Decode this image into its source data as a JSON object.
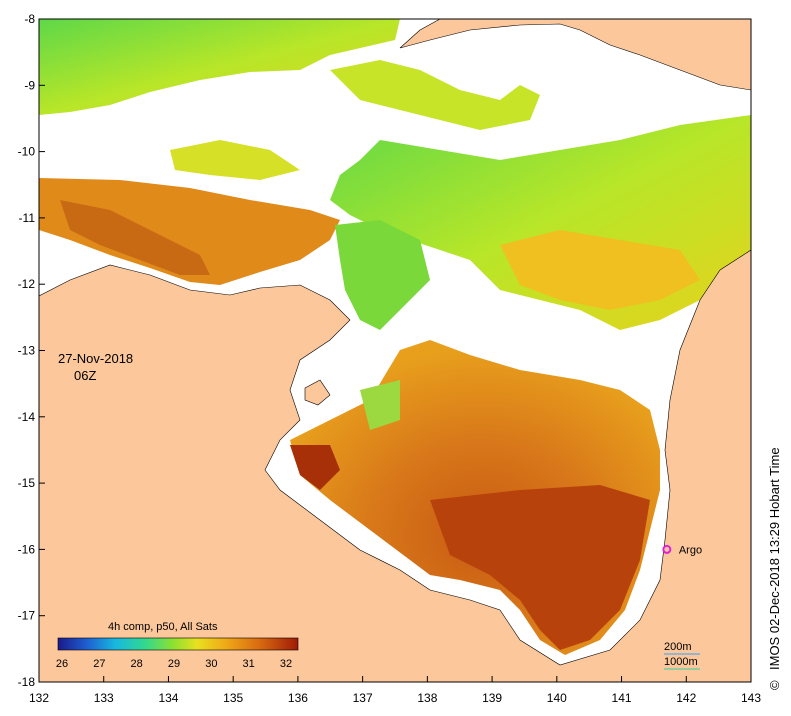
{
  "map": {
    "date": "27-Nov-2018",
    "time": "06Z",
    "credit": "IMOS 02-Dec-2018 13:29 Hobart Time",
    "copyright": "©",
    "argo_label": "Argo",
    "colorbar_title": "4h comp, p50, All Sats",
    "colorbar_ticks": [
      "26",
      "27",
      "28",
      "29",
      "30",
      "31",
      "32"
    ],
    "scale_labels": [
      "200m",
      "1000m"
    ],
    "lon_ticks": [
      "132",
      "133",
      "134",
      "135",
      "136",
      "137",
      "138",
      "139",
      "140",
      "141",
      "142",
      "143"
    ],
    "lat_ticks": [
      "-8",
      "-9",
      "-10",
      "-11",
      "-12",
      "-13",
      "-14",
      "-15",
      "-16",
      "-17",
      "-18"
    ],
    "lon_range": [
      132,
      143
    ],
    "lat_range": [
      -18,
      -8
    ],
    "argo_position": {
      "lon": 141.7,
      "lat": -16.0
    },
    "colors": {
      "land": "#fbc79b",
      "missing": "#ffffff",
      "warm": "#b03a0a",
      "mid": "#e08a1a",
      "cool_yellow": "#f2d71c",
      "cool_green": "#8fdc30",
      "argo": "#e020e0"
    }
  }
}
